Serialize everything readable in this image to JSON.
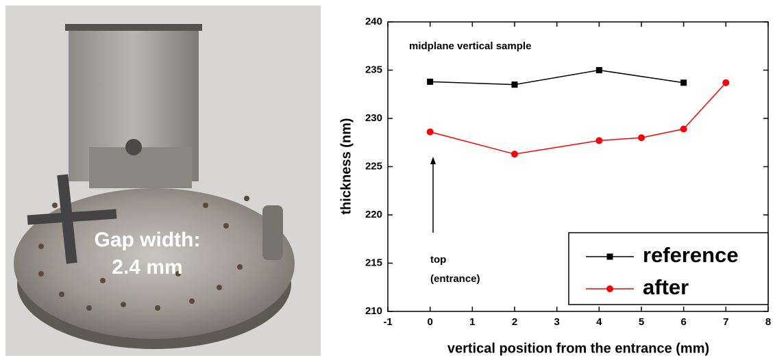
{
  "photo": {
    "caption": [
      "Gap width:",
      "2.4 mm"
    ]
  },
  "chart_data": {
    "type": "line",
    "x_label": "vertical position from the entrance (mm)",
    "y_label": "thickness (nm)",
    "annotations": [
      "midplane vertical sample",
      "top",
      "(entrance)"
    ],
    "xlim": [
      -1,
      8
    ],
    "xticks": [
      -1,
      0,
      1,
      2,
      3,
      4,
      5,
      6,
      7,
      8
    ],
    "ylim": [
      210,
      240
    ],
    "yticks": [
      210,
      215,
      220,
      225,
      230,
      235,
      240
    ],
    "legend": "lower right",
    "series": [
      {
        "name": "reference",
        "color": "#000000",
        "marker": "square",
        "x": [
          0,
          2,
          4,
          6
        ],
        "values": [
          233.8,
          233.5,
          235.0,
          233.7
        ]
      },
      {
        "name": "after",
        "color": "#ff0000",
        "marker": "circle",
        "x": [
          0,
          2,
          4,
          5,
          6,
          7
        ],
        "values": [
          228.6,
          226.3,
          227.7,
          228.0,
          228.9,
          233.7
        ]
      }
    ]
  }
}
